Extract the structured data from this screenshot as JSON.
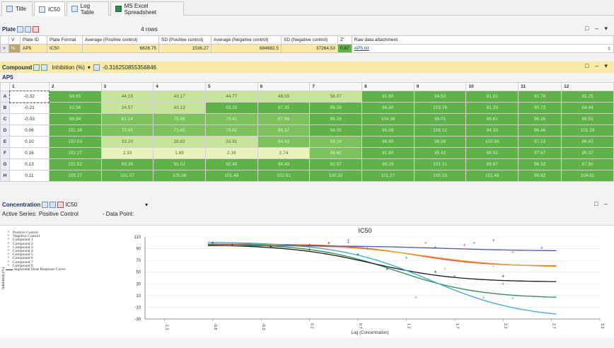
{
  "tabs": [
    {
      "label": "Title"
    },
    {
      "label": "IC50"
    },
    {
      "label": "Log Table"
    },
    {
      "label": "MS Excel Spreadsheet"
    }
  ],
  "plate": {
    "title": "Plate",
    "row_count": "4 rows",
    "columns": [
      "V",
      "Plate ID",
      "Plate Format",
      "Average (Positive control)",
      "SD (Positive control)",
      "Average (Negative control)",
      "SD (Negative control)",
      "Z'",
      "Raw data attachment"
    ],
    "row": {
      "marker": "N",
      "plate_id": "AP5",
      "format": "IC50",
      "avg_pos": "6828.75",
      "sd_pos": "1536.27",
      "avg_neg": "684682.5",
      "sd_neg": "37264.53",
      "z": "0.87",
      "attachment": "AP5.txt"
    }
  },
  "compound": {
    "title": "Compound",
    "measure": "Inhibition (%)",
    "value": "-0.316250855356846",
    "plate_label": "AP5",
    "col_headers": [
      "1",
      "2",
      "3",
      "4",
      "5",
      "6",
      "7",
      "8",
      "9",
      "10",
      "11",
      "12"
    ],
    "rows": [
      {
        "label": "A",
        "marker": ">",
        "values": [
          "-0.32",
          "94.63",
          "44.18",
          "43.17",
          "44.77",
          "48.55",
          "56.07",
          "91.60",
          "94.50",
          "91.81",
          "91.78",
          "91.25"
        ]
      },
      {
        "label": "B",
        "values": [
          "-0.21",
          "92.56",
          "24.57",
          "43.13",
          "93.22",
          "97.35",
          "99.29",
          "96.80",
          "103.76",
          "91.29",
          "95.72",
          "94.44"
        ]
      },
      {
        "label": "C",
        "values": [
          "-0.03",
          "98.84",
          "81.14",
          "75.96",
          "79.41",
          "87.96",
          "99.26",
          "104.38",
          "99.01",
          "96.61",
          "96.26",
          "99.51"
        ]
      },
      {
        "label": "D",
        "values": [
          "0.06",
          "101.38",
          "72.65",
          "71.65",
          "79.82",
          "86.37",
          "94.05",
          "95.69",
          "108.12",
          "94.33",
          "96.46",
          "101.28"
        ]
      },
      {
        "label": "E",
        "values": [
          "0.10",
          "102.03",
          "33.20",
          "28.82",
          "33.81",
          "64.43",
          "83.14",
          "96.60",
          "98.38",
          "100.95",
          "97.23",
          "96.42"
        ]
      },
      {
        "label": "F",
        "values": [
          "0.16",
          "102.27",
          "2.33",
          "1.89",
          "2.16",
          "2.74",
          "86.60",
          "91.60",
          "95.42",
          "98.52",
          "97.67",
          "95.37"
        ]
      },
      {
        "label": "G",
        "values": [
          "0.13",
          "101.52",
          "89.36",
          "91.02",
          "92.48",
          "88.49",
          "92.97",
          "98.20",
          "101.31",
          "99.67",
          "96.32",
          "97.80"
        ]
      },
      {
        "label": "H",
        "values": [
          "0.11",
          "105.27",
          "101.07",
          "105.08",
          "101.48",
          "102.91",
          "100.32",
          "101.27",
          "105.03",
          "101.48",
          "99.82",
          "104.61"
        ]
      }
    ]
  },
  "concentration": {
    "title": "Concentration",
    "view": "IC50",
    "active_series_label": "Active Series:",
    "active_series": "Positive Control",
    "data_point_label": "- Data Point:"
  },
  "colors": {
    "high": "#5fb346",
    "mid": "#7cc35a",
    "light": "#c8e39a",
    "pale": "#e9f2b8",
    "accent": "#b8a6d6"
  },
  "chart_data": {
    "type": "scatter",
    "title": "IC50",
    "xlabel": "Log (Concentration)",
    "ylabel": "Inhibition (%)",
    "xlim": [
      -1.5,
      3.2
    ],
    "ylim": [
      -30,
      110
    ],
    "xticks": [
      "-1.3",
      "-0.8",
      "-0.3",
      "0.2",
      "0.7",
      "1.2",
      "1.7",
      "2.2",
      "2.7",
      "3.2"
    ],
    "yticks": [
      "110",
      "90",
      "70",
      "50",
      "30",
      "10",
      "-10",
      "-30"
    ],
    "legend_position": "left",
    "legend": [
      "Positive Control",
      "Negative Control",
      "Compound 1",
      "Compound 2",
      "Compound 3",
      "Compound 4",
      "Compound 5",
      "Compound 6",
      "Compound 7",
      "Compound 8",
      "Sigmoidal Dose Response Curve"
    ],
    "series": [
      {
        "name": "Compound 1",
        "color": "#e04848",
        "curve": {
          "top": 98,
          "bottom": 60,
          "ec50": 1.3,
          "hill": 1.2
        }
      },
      {
        "name": "Compound 2",
        "color": "#f0a030",
        "curve": {
          "top": 97,
          "bottom": 58,
          "ec50": 1.4,
          "hill": 1.0
        }
      },
      {
        "name": "Compound 3",
        "color": "#2e8b57",
        "curve": {
          "top": 99,
          "bottom": 5,
          "ec50": 1.1,
          "hill": 1.0
        }
      },
      {
        "name": "Compound 4",
        "color": "#1a1a1a",
        "curve": {
          "top": 97,
          "bottom": 33,
          "ec50": 0.85,
          "hill": 1.0
        }
      },
      {
        "name": "Compound 5",
        "color": "#3aa8d8",
        "curve": {
          "top": 102,
          "bottom": -30,
          "ec50": 1.45,
          "hill": 0.9
        }
      },
      {
        "name": "Compound 6",
        "color": "#4a5ab8",
        "curve": {
          "top": 95,
          "bottom": 86,
          "ec50": 1.6,
          "hill": 1.0
        }
      }
    ],
    "points": [
      {
        "x": -0.6,
        "y": 96,
        "c": "#1a1a1a"
      },
      {
        "x": -0.2,
        "y": 93,
        "c": "#1a1a1a"
      },
      {
        "x": 0.2,
        "y": 88,
        "c": "#1a1a1a"
      },
      {
        "x": 0.7,
        "y": 80,
        "c": "#1a1a1a"
      },
      {
        "x": 1.0,
        "y": 55,
        "c": "#1a1a1a"
      },
      {
        "x": 1.5,
        "y": 50,
        "c": "#1a1a1a"
      },
      {
        "x": 2.2,
        "y": 43,
        "c": "#1a1a1a"
      },
      {
        "x": 0.2,
        "y": 97,
        "c": "#2e8b57"
      },
      {
        "x": 0.8,
        "y": 90,
        "c": "#2e8b57"
      },
      {
        "x": 1.2,
        "y": 74,
        "c": "#2e8b57"
      },
      {
        "x": 1.7,
        "y": 43,
        "c": "#2e8b57"
      },
      {
        "x": 2.2,
        "y": 30,
        "c": "#2e8b57"
      },
      {
        "x": 0.6,
        "y": 104,
        "c": "#e04848"
      },
      {
        "x": 1.4,
        "y": 100,
        "c": "#e04848"
      },
      {
        "x": 1.8,
        "y": 96,
        "c": "#e04848"
      },
      {
        "x": 2.3,
        "y": 84,
        "c": "#e04848"
      },
      {
        "x": 1.5,
        "y": 92,
        "c": "#4a5ab8"
      },
      {
        "x": 1.9,
        "y": 99,
        "c": "#4a5ab8"
      },
      {
        "x": 2.1,
        "y": 104,
        "c": "#4a5ab8"
      },
      {
        "x": 2.6,
        "y": 91,
        "c": "#4a5ab8"
      },
      {
        "x": 1.6,
        "y": 55,
        "c": "#f0a030"
      },
      {
        "x": 2.1,
        "y": 60,
        "c": "#f0a030"
      },
      {
        "x": 1.3,
        "y": 7,
        "c": "#3aa8d8"
      },
      {
        "x": 2.0,
        "y": 7,
        "c": "#3aa8d8"
      },
      {
        "x": 2.3,
        "y": 5,
        "c": "#3aa8d8"
      },
      {
        "x": -0.8,
        "y": 100,
        "c": "#1a1a1a"
      },
      {
        "x": 0.4,
        "y": 99,
        "c": "#1a1a1a"
      },
      {
        "x": 0.6,
        "y": 101,
        "c": "#4a5ab8"
      }
    ]
  }
}
